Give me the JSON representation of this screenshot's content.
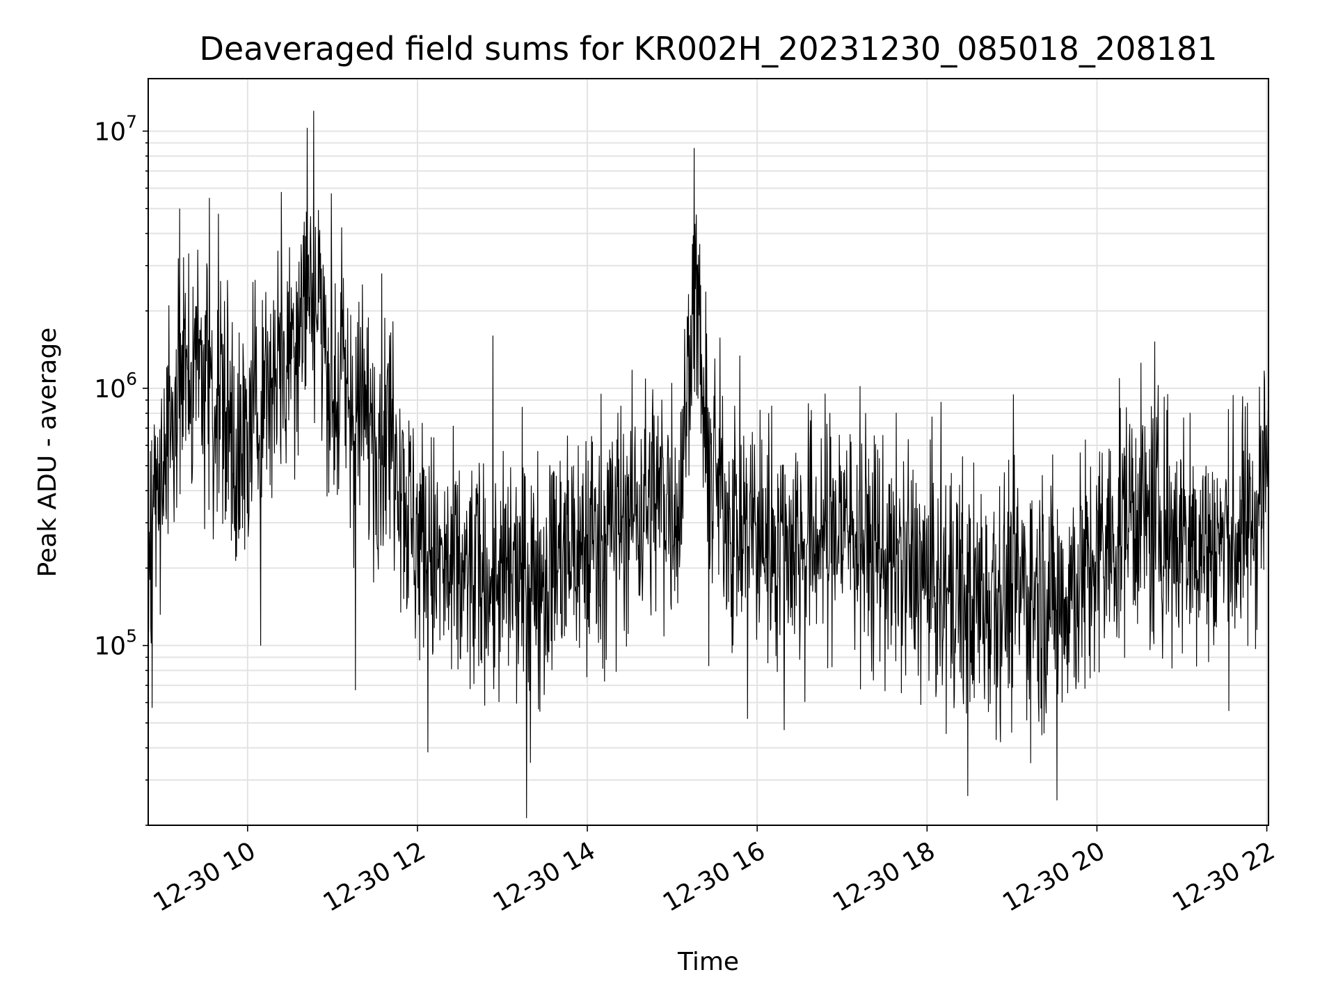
{
  "chart_data": {
    "type": "line",
    "title": "Deaveraged field sums for KR002H_20231230_085018_208181",
    "xlabel": "Time",
    "ylabel": "Peak ADU - average",
    "yscale": "log",
    "ylim": [
      20000,
      16000000
    ],
    "xlim_hours": [
      8.83,
      22.02
    ],
    "grid": true,
    "x_ticks": [
      {
        "hour": 10,
        "label": "12-30 10"
      },
      {
        "hour": 12,
        "label": "12-30 12"
      },
      {
        "hour": 14,
        "label": "12-30 14"
      },
      {
        "hour": 16,
        "label": "12-30 16"
      },
      {
        "hour": 18,
        "label": "12-30 18"
      },
      {
        "hour": 20,
        "label": "12-30 20"
      },
      {
        "hour": 22,
        "label": "12-30 22"
      }
    ],
    "y_ticks": [
      {
        "value": 100000,
        "base": "10",
        "exp": "5"
      },
      {
        "value": 1000000,
        "base": "10",
        "exp": "6"
      },
      {
        "value": 10000000,
        "base": "10",
        "exp": "7"
      }
    ],
    "series": [
      {
        "name": "deaveraged field sums",
        "color": "#000000",
        "envelope_description": "median trend (hour, median ADU, spread in decades); spikes sampled around it",
        "trend": [
          [
            8.83,
            250000,
            0.35
          ],
          [
            9.1,
            800000,
            0.45
          ],
          [
            9.4,
            1400000,
            0.4
          ],
          [
            9.7,
            900000,
            0.45
          ],
          [
            9.9,
            500000,
            0.45
          ],
          [
            10.2,
            1000000,
            0.4
          ],
          [
            10.5,
            1500000,
            0.4
          ],
          [
            10.7,
            2500000,
            0.4
          ],
          [
            10.85,
            2200000,
            0.4
          ],
          [
            11.0,
            1100000,
            0.4
          ],
          [
            11.3,
            800000,
            0.4
          ],
          [
            11.5,
            700000,
            0.4
          ],
          [
            11.75,
            700000,
            0.4
          ],
          [
            11.9,
            300000,
            0.4
          ],
          [
            12.3,
            190000,
            0.38
          ],
          [
            13.0,
            170000,
            0.38
          ],
          [
            13.6,
            200000,
            0.38
          ],
          [
            13.95,
            250000,
            0.38
          ],
          [
            14.4,
            320000,
            0.38
          ],
          [
            14.8,
            380000,
            0.38
          ],
          [
            15.1,
            350000,
            0.38
          ],
          [
            15.2,
            1500000,
            0.3
          ],
          [
            15.3,
            2500000,
            0.3
          ],
          [
            15.4,
            500000,
            0.38
          ],
          [
            15.8,
            280000,
            0.38
          ],
          [
            16.5,
            250000,
            0.38
          ],
          [
            17.0,
            300000,
            0.38
          ],
          [
            17.5,
            220000,
            0.38
          ],
          [
            18.0,
            180000,
            0.38
          ],
          [
            18.5,
            150000,
            0.4
          ],
          [
            19.0,
            170000,
            0.4
          ],
          [
            19.5,
            150000,
            0.4
          ],
          [
            20.0,
            200000,
            0.4
          ],
          [
            20.4,
            350000,
            0.38
          ],
          [
            20.8,
            280000,
            0.38
          ],
          [
            21.2,
            250000,
            0.38
          ],
          [
            21.6,
            250000,
            0.38
          ],
          [
            21.85,
            300000,
            0.38
          ],
          [
            22.02,
            600000,
            0.38
          ]
        ],
        "peaks": [
          {
            "hour": 9.2,
            "value": 5000000
          },
          {
            "hour": 9.55,
            "value": 5500000
          },
          {
            "hour": 10.4,
            "value": 5800000
          },
          {
            "hour": 10.7,
            "value": 10300000
          },
          {
            "hour": 10.78,
            "value": 12000000
          },
          {
            "hour": 15.26,
            "value": 8600000
          },
          {
            "hour": 13.33,
            "value": 35000
          },
          {
            "hour": 19.53,
            "value": 25000
          },
          {
            "hour": 18.48,
            "value": 26000
          },
          {
            "hour": 11.27,
            "value": 67000
          }
        ]
      }
    ]
  }
}
